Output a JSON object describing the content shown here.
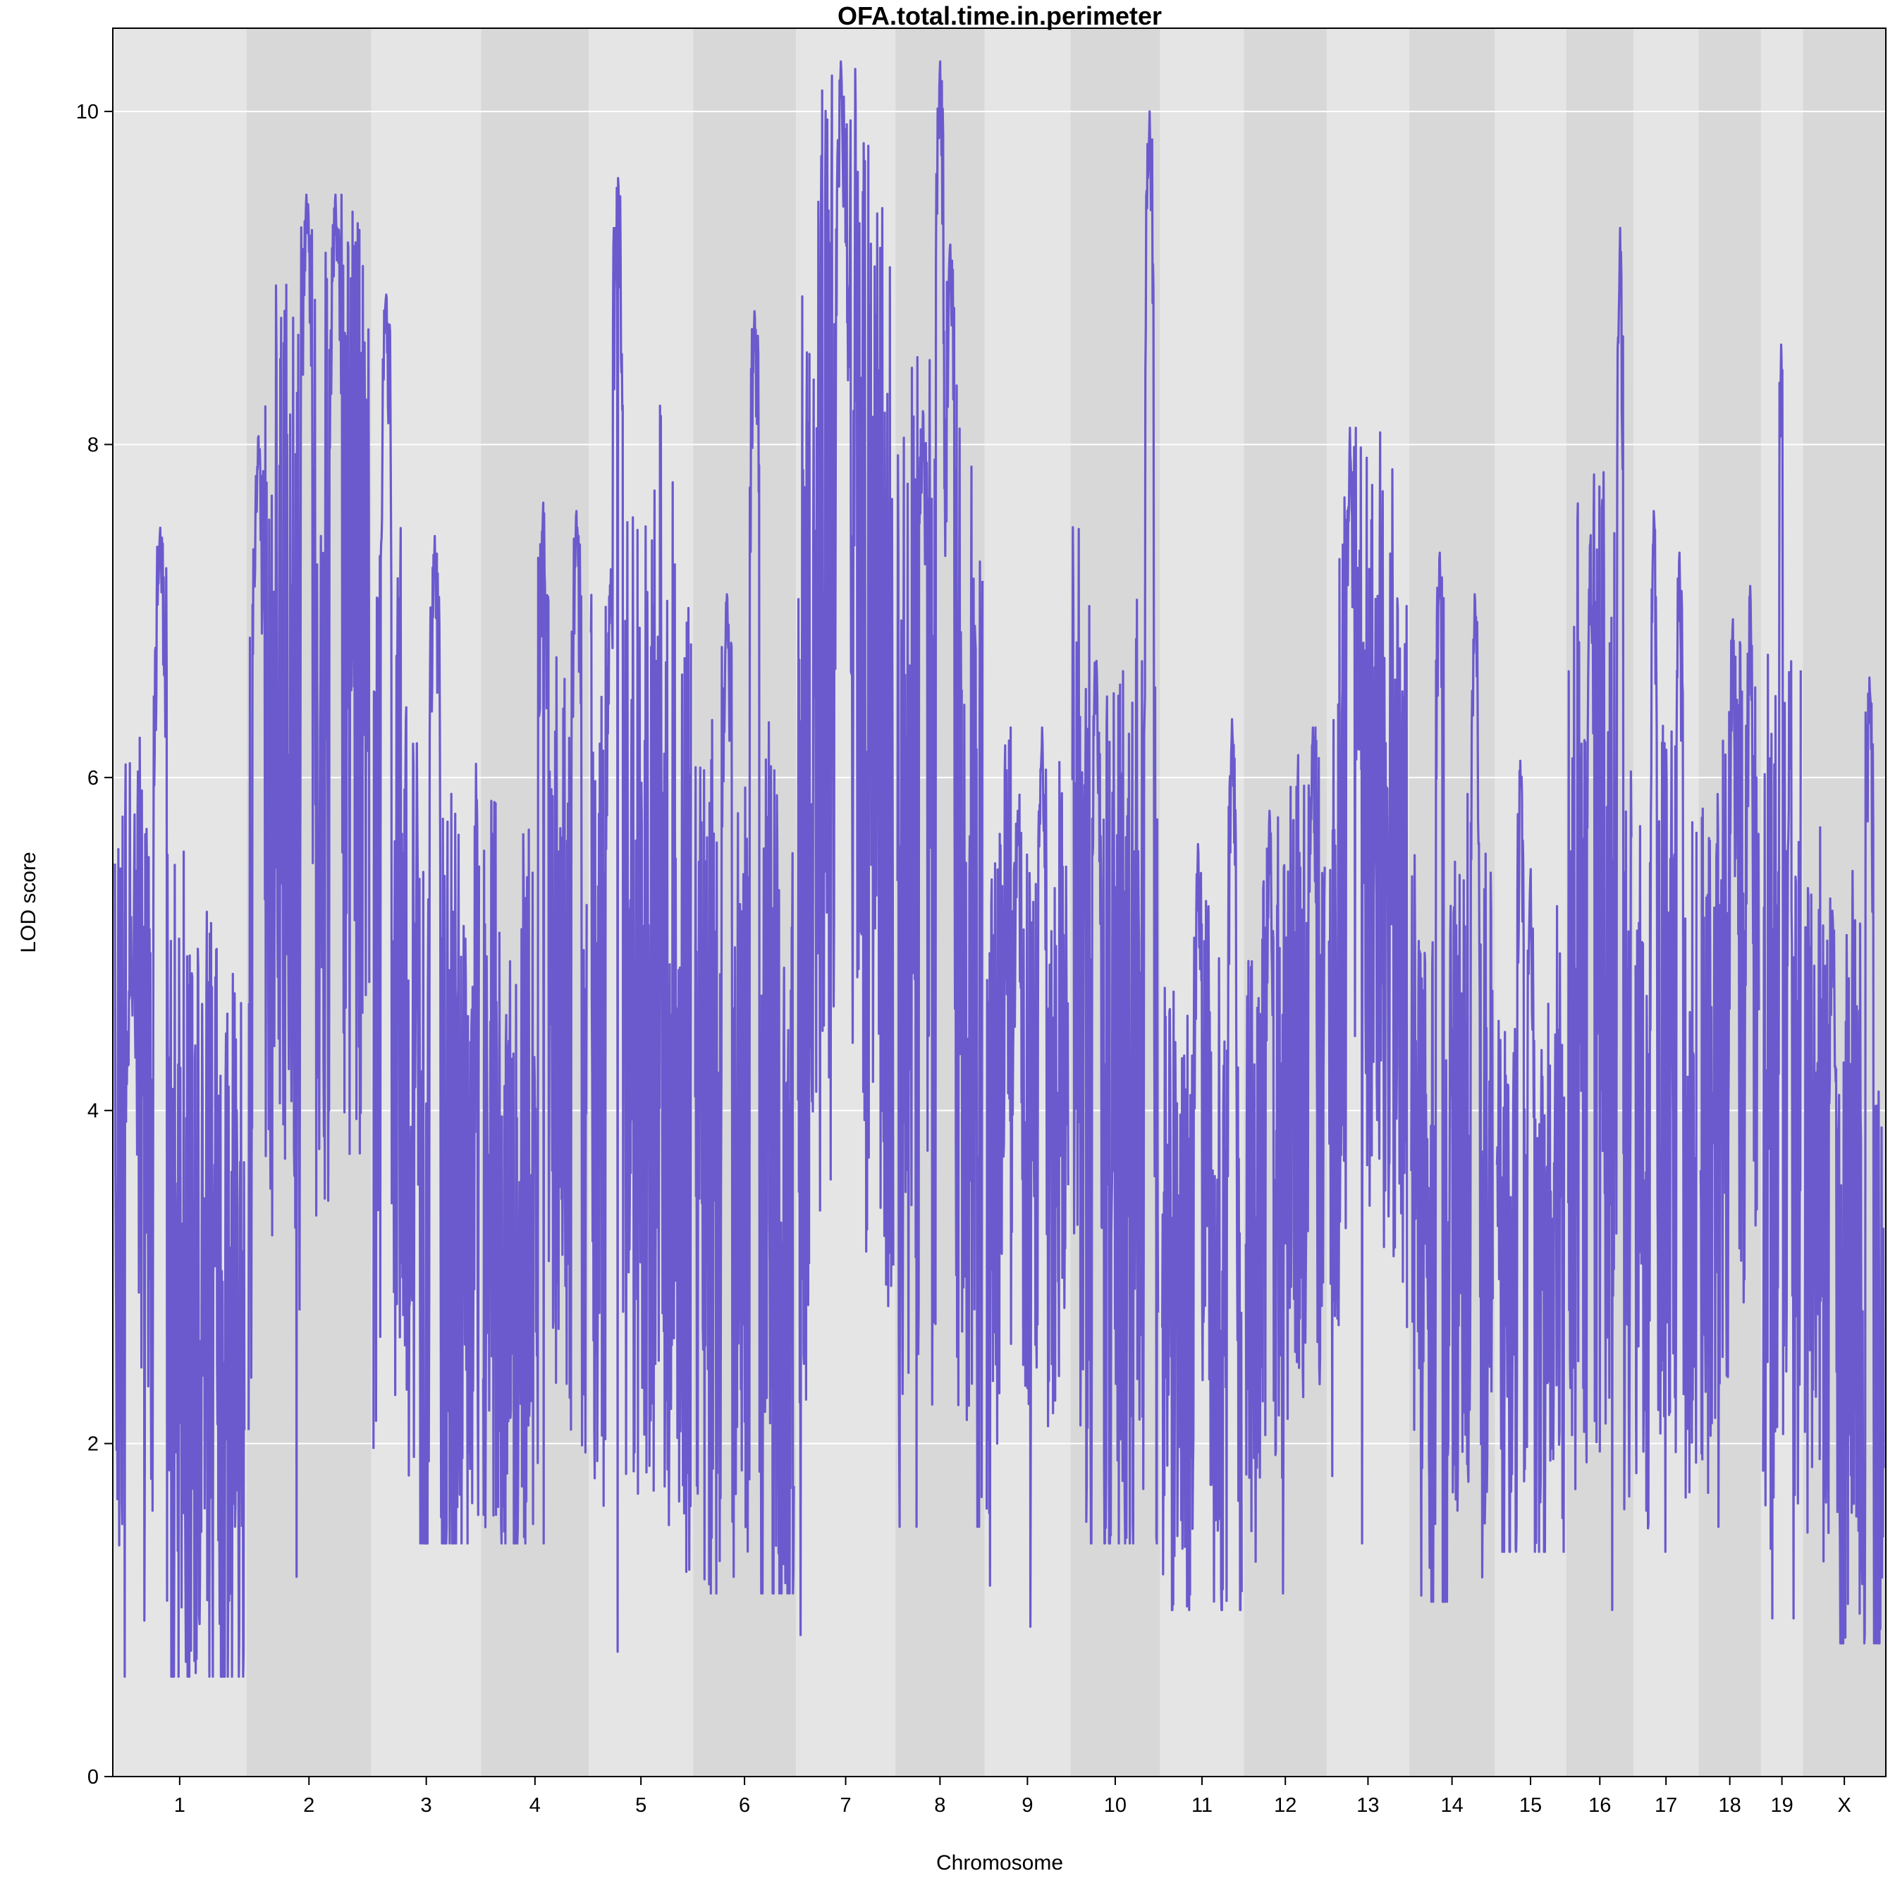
{
  "chart_data": {
    "type": "line",
    "title": "OFA.total.time.in.perimeter",
    "xlabel": "Chromosome",
    "ylabel": "LOD score",
    "ylim": [
      0,
      10.5
    ],
    "yticks": [
      0,
      2,
      4,
      6,
      8,
      10
    ],
    "grid": true,
    "legend": "none",
    "colors": {
      "line": "#6a5acd",
      "band_light": "#e5e5e5",
      "band_dark": "#d8d8d8"
    },
    "chromosomes": [
      {
        "label": "1",
        "length": 195,
        "ymin": 0.6,
        "ymax": 7.5,
        "peaks": [
          [
            0.35,
            7.5
          ],
          [
            0.12,
            4.8
          ]
        ]
      },
      {
        "label": "2",
        "length": 182,
        "ymin": 1.2,
        "ymax": 9.5,
        "peaks": [
          [
            0.48,
            9.5
          ],
          [
            0.72,
            9.5
          ],
          [
            0.08,
            8.05
          ]
        ]
      },
      {
        "label": "3",
        "length": 160,
        "ymin": 1.4,
        "ymax": 8.9,
        "peaks": [
          [
            0.12,
            8.9
          ],
          [
            0.58,
            7.45
          ]
        ]
      },
      {
        "label": "4",
        "length": 157,
        "ymin": 1.4,
        "ymax": 7.65,
        "peaks": [
          [
            0.58,
            7.65
          ],
          [
            0.9,
            7.6
          ]
        ]
      },
      {
        "label": "5",
        "length": 152,
        "ymin": 0.75,
        "ymax": 9.6,
        "peaks": [
          [
            0.27,
            9.6
          ],
          [
            0.2,
            7.25
          ]
        ]
      },
      {
        "label": "6",
        "length": 150,
        "ymin": 1.1,
        "ymax": 8.8,
        "peaks": [
          [
            0.6,
            8.8
          ],
          [
            0.32,
            7.1
          ]
        ]
      },
      {
        "label": "7",
        "length": 145,
        "ymin": 0.85,
        "ymax": 10.3,
        "peaks": [
          [
            0.45,
            10.3
          ],
          [
            0.5,
            9.3
          ]
        ]
      },
      {
        "label": "8",
        "length": 130,
        "ymin": 1.5,
        "ymax": 10.3,
        "peaks": [
          [
            0.5,
            10.3
          ],
          [
            0.3,
            8.2
          ],
          [
            0.62,
            9.2
          ]
        ]
      },
      {
        "label": "9",
        "length": 125,
        "ymin": 0.9,
        "ymax": 6.3,
        "peaks": [
          [
            0.68,
            6.3
          ],
          [
            0.38,
            5.8
          ]
        ]
      },
      {
        "label": "10",
        "length": 131,
        "ymin": 1.4,
        "ymax": 10.0,
        "peaks": [
          [
            0.9,
            10.0
          ],
          [
            0.28,
            6.7
          ]
        ]
      },
      {
        "label": "11",
        "length": 122,
        "ymin": 1.0,
        "ymax": 6.35,
        "peaks": [
          [
            0.88,
            6.35
          ],
          [
            0.45,
            5.6
          ]
        ]
      },
      {
        "label": "12",
        "length": 121,
        "ymin": 1.1,
        "ymax": 6.3,
        "peaks": [
          [
            0.85,
            6.3
          ],
          [
            0.3,
            5.8
          ]
        ]
      },
      {
        "label": "13",
        "length": 120,
        "ymin": 1.4,
        "ymax": 8.1,
        "peaks": [
          [
            0.27,
            8.1
          ],
          [
            0.4,
            6.6
          ]
        ]
      },
      {
        "label": "14",
        "length": 125,
        "ymin": 1.05,
        "ymax": 7.35,
        "peaks": [
          [
            0.35,
            7.35
          ],
          [
            0.78,
            7.1
          ]
        ]
      },
      {
        "label": "15",
        "length": 104,
        "ymin": 1.35,
        "ymax": 6.1,
        "peaks": [
          [
            0.35,
            6.1
          ],
          [
            0.5,
            5.45
          ]
        ]
      },
      {
        "label": "16",
        "length": 98,
        "ymin": 1.0,
        "ymax": 9.3,
        "peaks": [
          [
            0.82,
            9.3
          ],
          [
            0.35,
            7.4
          ]
        ]
      },
      {
        "label": "17",
        "length": 95,
        "ymin": 1.35,
        "ymax": 7.6,
        "peaks": [
          [
            0.3,
            7.6
          ],
          [
            0.72,
            7.35
          ]
        ]
      },
      {
        "label": "18",
        "length": 91,
        "ymin": 1.5,
        "ymax": 7.15,
        "peaks": [
          [
            0.85,
            7.15
          ],
          [
            0.55,
            6.95
          ]
        ]
      },
      {
        "label": "19",
        "length": 61,
        "ymin": 0.95,
        "ymax": 8.6,
        "peaks": [
          [
            0.48,
            8.6
          ],
          [
            0.7,
            6.55
          ]
        ]
      },
      {
        "label": "X",
        "length": 121,
        "ymin": 0.8,
        "ymax": 6.6,
        "peaks": [
          [
            0.82,
            6.6
          ],
          [
            0.35,
            5.2
          ]
        ]
      }
    ]
  }
}
